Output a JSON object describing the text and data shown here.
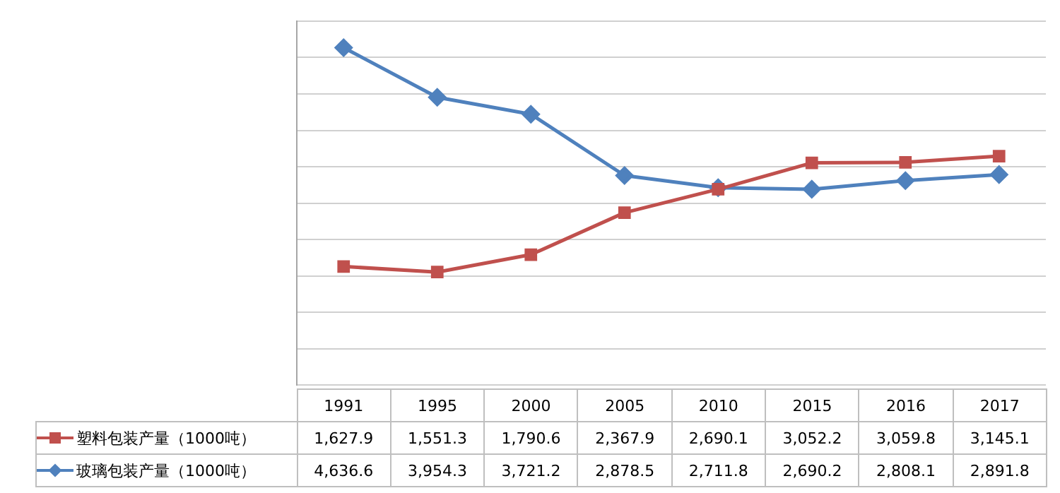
{
  "chart_data": {
    "type": "line",
    "categories": [
      "1991",
      "1995",
      "2000",
      "2005",
      "2010",
      "2015",
      "2016",
      "2017"
    ],
    "series": [
      {
        "name": "塑料包装产量（1000吨）",
        "color": "#c0504d",
        "marker": "square",
        "values": [
          1627.9,
          1551.3,
          1790.6,
          2367.9,
          2690.1,
          3052.2,
          3059.8,
          3145.1
        ],
        "value_labels": [
          "1,627.9",
          "1,551.3",
          "1,790.6",
          "2,367.9",
          "2,690.1",
          "3,052.2",
          "3,059.8",
          "3,145.1"
        ]
      },
      {
        "name": "玻璃包装产量（1000吨）",
        "color": "#4f81bd",
        "marker": "diamond",
        "values": [
          4636.6,
          3954.3,
          3721.2,
          2878.5,
          2711.8,
          2690.2,
          2808.1,
          2891.8
        ],
        "value_labels": [
          "4,636.6",
          "3,954.3",
          "3,721.2",
          "2,878.5",
          "2,711.8",
          "2,690.2",
          "2,808.1",
          "2,891.8"
        ]
      }
    ],
    "ylim": [
      0,
      5000
    ],
    "yticks": [
      {
        "value": 0,
        "label": null
      },
      {
        "value": 500,
        "label": null
      },
      {
        "value": 1000,
        "label": null
      },
      {
        "value": 1500,
        "label": null
      },
      {
        "value": 2000,
        "label": null
      },
      {
        "value": 2500,
        "label": null
      },
      {
        "value": 3000,
        "label": null
      },
      {
        "value": 3500,
        "label": null
      },
      {
        "value": 4000,
        "label": null
      },
      {
        "value": 4500,
        "label": null
      },
      {
        "value": 5000,
        "label": null
      }
    ],
    "grid": "y",
    "legend": "bottom",
    "tick_labels": "x"
  }
}
